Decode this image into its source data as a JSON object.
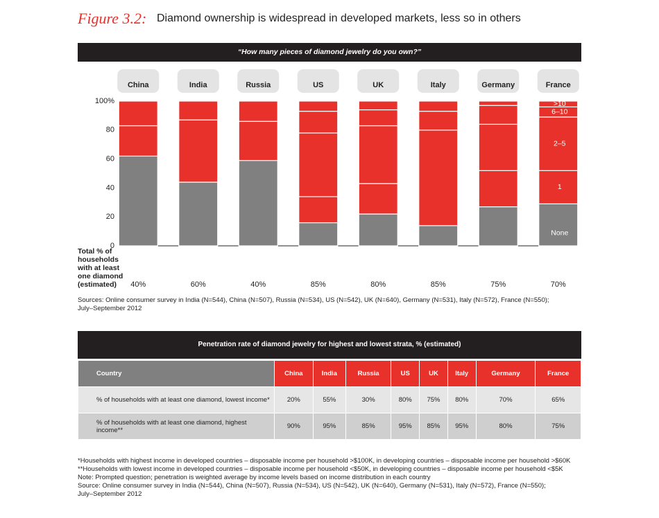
{
  "figure": {
    "label": "Figure 3.2:",
    "title": "Diamond ownership is widespread in developed markets, less so in others"
  },
  "chart_data": {
    "type": "stacked_bar",
    "title": "“How many pieces of diamond jewelry do you own?”",
    "categories": [
      "China",
      "India",
      "Russia",
      "US",
      "UK",
      "Italy",
      "Germany",
      "France"
    ],
    "series": [
      {
        "name": "None",
        "color": "#808080",
        "values": [
          62,
          44,
          59,
          16,
          22,
          14,
          27,
          29
        ]
      },
      {
        "name": "1",
        "color": "#e8312a",
        "values": [
          21,
          43,
          27,
          18,
          21,
          66,
          25,
          23
        ]
      },
      {
        "name": "2–5",
        "color": "#e8312a",
        "values": [
          17,
          13,
          14,
          44,
          40,
          13,
          32,
          37
        ]
      },
      {
        "name": "6–10",
        "color": "#e8312a",
        "values": [
          0,
          0,
          0,
          15,
          11,
          7,
          13,
          7
        ]
      },
      {
        "name": ">10",
        "color": "#e8312a",
        "values": [
          0,
          0,
          0,
          7,
          6,
          0,
          3,
          4
        ]
      }
    ],
    "ylim": [
      0,
      100
    ],
    "yticks": [
      0,
      20,
      40,
      60,
      80,
      {
        "value": 100,
        "label": "100%"
      }
    ],
    "totals": {
      "label": "Total % of households with at least one diamond (estimated)",
      "values": [
        "40%",
        "60%",
        "40%",
        "85%",
        "80%",
        "85%",
        "75%",
        "70%"
      ]
    },
    "source": [
      "Sources: Online consumer survey in India (N=544), China (N=507), Russia (N=534), US (N=542), UK (N=640), Germany (N=531), Italy (N=572), France (N=550);",
      "July–September 2012"
    ]
  },
  "table": {
    "title": "Penetration rate of diamond jewelry for highest and lowest strata, % (estimated)",
    "header": [
      "Country",
      "China",
      "India",
      "Russia",
      "US",
      "UK",
      "Italy",
      "Germany",
      "France"
    ],
    "rows": [
      [
        "% of households with at least one diamond, lowest income*",
        "20%",
        "55%",
        "30%",
        "80%",
        "75%",
        "80%",
        "70%",
        "65%"
      ],
      [
        "% of households with at least one diamond, highest income**",
        "90%",
        "95%",
        "85%",
        "95%",
        "85%",
        "95%",
        "80%",
        "75%"
      ]
    ]
  },
  "notes": [
    "*Households with highest income in developed countries – disposable income per household >$100K, in developing countries – disposable income per household  >$60K",
    "**Households with lowest income in developed countries – disposable income per household <$50K, in developing countries – disposable income per household <$5K",
    "Note: Prompted question; penetration is weighted average by income levels based on income distribution in each country",
    "Source: Online consumer survey in India (N=544), China (N=507), Russia (N=534), US (N=542), UK (N=640), Germany (N=531), Italy (N=572), France (N=550);",
    "July–September 2012"
  ]
}
